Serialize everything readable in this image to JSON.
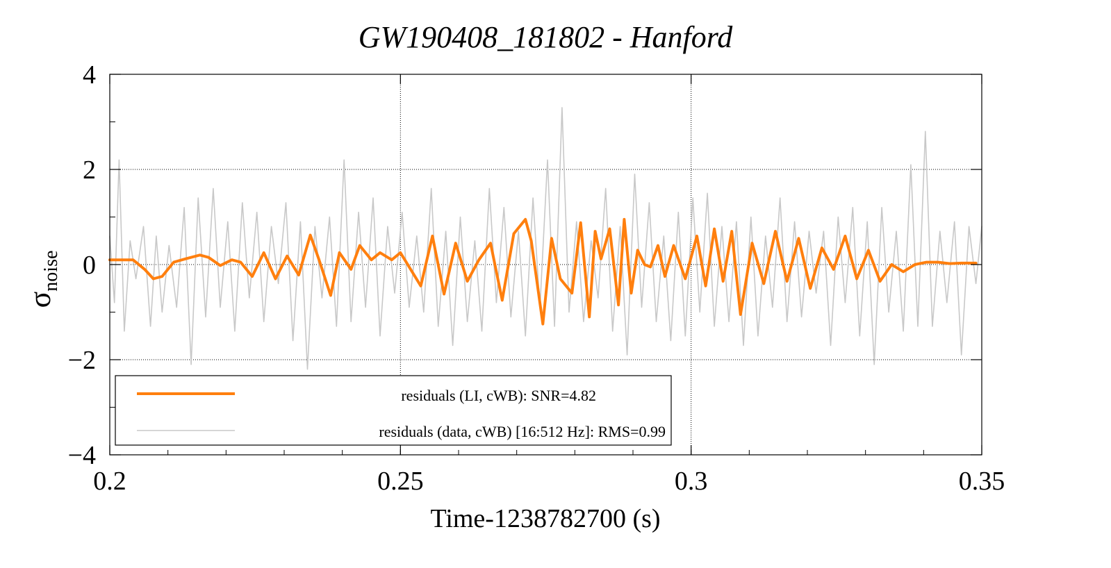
{
  "chart_data": {
    "type": "line",
    "title": "GW190408_181802 - Hanford",
    "xlabel": "Time-1238782700 (s)",
    "ylabel": {
      "symbol": "σ",
      "subscript": "noise"
    },
    "xlim": [
      0.2,
      0.35
    ],
    "ylim": [
      -4,
      4
    ],
    "xticks": [
      0.2,
      0.25,
      0.3,
      0.35
    ],
    "xtick_labels": [
      "0.2",
      "0.25",
      "0.3",
      "0.35"
    ],
    "yticks": [
      -4,
      -2,
      0,
      2,
      4
    ],
    "ytick_labels": [
      "−4",
      "−2",
      "0",
      "2",
      "4"
    ],
    "grid": true,
    "legend_position": "bottom-left",
    "series": [
      {
        "name": "residuals (LI, cWB): SNR=4.82",
        "color": "#ff7f0e",
        "x": [
          0.2,
          0.204,
          0.206,
          0.2075,
          0.209,
          0.211,
          0.213,
          0.2155,
          0.217,
          0.219,
          0.221,
          0.2225,
          0.2245,
          0.2265,
          0.2285,
          0.2305,
          0.2325,
          0.2345,
          0.236,
          0.238,
          0.2395,
          0.2415,
          0.243,
          0.245,
          0.2465,
          0.2485,
          0.25,
          0.2515,
          0.2535,
          0.2555,
          0.2575,
          0.2595,
          0.2615,
          0.2635,
          0.2655,
          0.2675,
          0.2695,
          0.2715,
          0.2725,
          0.2745,
          0.276,
          0.2775,
          0.2795,
          0.281,
          0.2825,
          0.2835,
          0.2845,
          0.286,
          0.2875,
          0.2885,
          0.2897,
          0.2908,
          0.292,
          0.293,
          0.2943,
          0.2955,
          0.297,
          0.299,
          0.301,
          0.3025,
          0.304,
          0.3055,
          0.307,
          0.3085,
          0.3105,
          0.3125,
          0.3145,
          0.3165,
          0.3185,
          0.3205,
          0.3225,
          0.3245,
          0.3265,
          0.3285,
          0.3305,
          0.3325,
          0.3345,
          0.3365,
          0.3385,
          0.3405,
          0.3425,
          0.3445,
          0.3465,
          0.349
        ],
        "y": [
          0.1,
          0.1,
          -0.1,
          -0.3,
          -0.25,
          0.05,
          0.12,
          0.2,
          0.15,
          -0.02,
          0.1,
          0.05,
          -0.25,
          0.25,
          -0.3,
          0.18,
          -0.22,
          0.62,
          0.1,
          -0.65,
          0.25,
          -0.1,
          0.4,
          0.1,
          0.25,
          0.1,
          0.25,
          -0.05,
          -0.45,
          0.6,
          -0.62,
          0.45,
          -0.35,
          0.1,
          0.45,
          -0.75,
          0.65,
          0.95,
          0.5,
          -1.25,
          0.55,
          -0.3,
          -0.6,
          0.88,
          -1.1,
          0.7,
          0.12,
          0.75,
          -0.85,
          0.95,
          -0.6,
          0.3,
          0.0,
          -0.05,
          0.4,
          -0.25,
          0.4,
          -0.3,
          0.6,
          -0.45,
          0.75,
          -0.35,
          0.7,
          -1.05,
          0.45,
          -0.4,
          0.7,
          -0.35,
          0.55,
          -0.5,
          0.35,
          -0.1,
          0.6,
          -0.3,
          0.3,
          -0.35,
          0.0,
          -0.15,
          0.0,
          0.05,
          0.05,
          0.02,
          0.03,
          0.03
        ]
      },
      {
        "name": "residuals (data, cWB) [16:512 Hz]: RMS=0.99",
        "color": "#c8c8c8",
        "x": [
          0.2,
          0.2008,
          0.2016,
          0.2025,
          0.2035,
          0.2045,
          0.2058,
          0.207,
          0.208,
          0.209,
          0.2102,
          0.2115,
          0.2128,
          0.214,
          0.2152,
          0.2165,
          0.2178,
          0.219,
          0.2203,
          0.2215,
          0.2228,
          0.224,
          0.2253,
          0.2265,
          0.2278,
          0.229,
          0.2303,
          0.2315,
          0.2328,
          0.234,
          0.2353,
          0.2365,
          0.2378,
          0.239,
          0.2403,
          0.2415,
          0.2428,
          0.244,
          0.2453,
          0.2465,
          0.2478,
          0.249,
          0.2503,
          0.2515,
          0.2528,
          0.254,
          0.2553,
          0.2565,
          0.2578,
          0.259,
          0.2603,
          0.2615,
          0.2628,
          0.264,
          0.2653,
          0.2665,
          0.2678,
          0.269,
          0.2703,
          0.2715,
          0.2728,
          0.274,
          0.2753,
          0.2765,
          0.2778,
          0.279,
          0.2803,
          0.2815,
          0.2828,
          0.284,
          0.2853,
          0.2865,
          0.2878,
          0.289,
          0.2903,
          0.2915,
          0.2928,
          0.294,
          0.2953,
          0.2965,
          0.2978,
          0.299,
          0.3003,
          0.3015,
          0.3028,
          0.304,
          0.3053,
          0.3065,
          0.3078,
          0.309,
          0.3103,
          0.3115,
          0.3128,
          0.314,
          0.3153,
          0.3165,
          0.3178,
          0.319,
          0.3203,
          0.3215,
          0.3228,
          0.324,
          0.3253,
          0.3265,
          0.3278,
          0.329,
          0.3303,
          0.3315,
          0.3328,
          0.334,
          0.3353,
          0.3365,
          0.3378,
          0.339,
          0.3403,
          0.3415,
          0.3428,
          0.344,
          0.3453,
          0.3465,
          0.3478,
          0.349,
          0.35
        ],
        "y": [
          0.6,
          -0.8,
          2.2,
          -1.4,
          0.5,
          -0.3,
          0.8,
          -1.3,
          0.6,
          -1.0,
          0.4,
          -0.9,
          1.2,
          -2.1,
          1.4,
          -1.1,
          1.6,
          -0.9,
          0.9,
          -1.4,
          1.3,
          -0.7,
          1.1,
          -1.2,
          0.8,
          -0.4,
          1.3,
          -1.6,
          0.9,
          -2.2,
          0.8,
          -0.7,
          1.0,
          -1.3,
          2.2,
          -1.2,
          1.1,
          -0.9,
          1.4,
          -1.5,
          0.8,
          -0.6,
          1.1,
          -0.9,
          0.6,
          -1.0,
          1.6,
          -1.3,
          0.7,
          -1.7,
          1.0,
          -1.2,
          0.5,
          -1.4,
          1.6,
          -0.8,
          1.2,
          -1.1,
          0.7,
          -1.5,
          1.4,
          -0.9,
          2.2,
          -1.3,
          3.3,
          -1.0,
          0.9,
          -1.2,
          0.5,
          -0.7,
          1.6,
          -1.4,
          0.8,
          -1.9,
          1.9,
          -0.9,
          1.3,
          -1.2,
          0.6,
          -1.6,
          1.1,
          -1.5,
          1.4,
          -1.0,
          1.5,
          -1.3,
          0.8,
          -1.2,
          0.9,
          -1.7,
          1.0,
          -1.5,
          0.6,
          -0.9,
          1.4,
          -1.2,
          0.9,
          -1.1,
          0.7,
          -0.6,
          0.7,
          -1.7,
          1.0,
          -0.8,
          1.2,
          -1.5,
          0.9,
          -2.1,
          1.2,
          -1.0,
          0.7,
          -1.4,
          2.1,
          -1.3,
          2.8,
          -1.3,
          0.7,
          -0.8,
          0.9,
          -1.9,
          0.8,
          -0.4,
          0.8
        ]
      }
    ]
  }
}
